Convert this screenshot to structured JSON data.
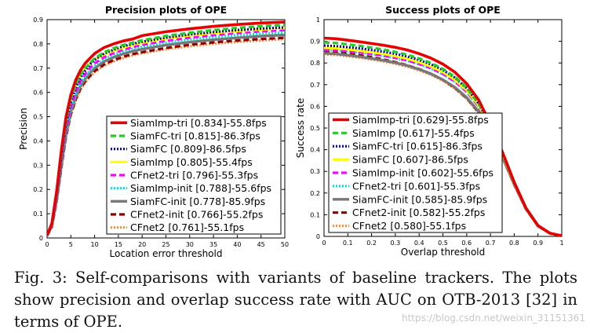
{
  "chart_data": [
    {
      "type": "line",
      "title": "Precision plots of OPE",
      "xlabel": "Location error threshold",
      "ylabel": "Precision",
      "xlim": [
        0,
        50
      ],
      "ylim": [
        0,
        0.9
      ],
      "xticks": [
        "0",
        "5",
        "10",
        "15",
        "20",
        "25",
        "30",
        "35",
        "40",
        "45",
        "50"
      ],
      "yticks": [
        "0",
        "0.1",
        "0.2",
        "0.3",
        "0.4",
        "0.5",
        "0.6",
        "0.7",
        "0.8",
        "0.9"
      ],
      "grid": false,
      "legend_position": "bottom-right",
      "x": [
        0,
        1,
        2,
        3,
        4,
        5,
        6,
        7,
        8,
        9,
        10,
        12,
        14,
        16,
        18,
        20,
        25,
        30,
        35,
        40,
        45,
        50
      ],
      "series": [
        {
          "name": "SiamImp-tri [0.834]-55.8fps",
          "color": "#e60000",
          "dash": "solid",
          "width": 3.6,
          "values": [
            0.01,
            0.06,
            0.19,
            0.36,
            0.5,
            0.59,
            0.65,
            0.69,
            0.72,
            0.74,
            0.76,
            0.785,
            0.8,
            0.812,
            0.82,
            0.834,
            0.85,
            0.862,
            0.872,
            0.88,
            0.886,
            0.89
          ]
        },
        {
          "name": "SiamFC-tri [0.815]-86.3fps",
          "color": "#22cc22",
          "dash": "7,4",
          "width": 3.2,
          "values": [
            0.01,
            0.055,
            0.18,
            0.34,
            0.48,
            0.57,
            0.63,
            0.67,
            0.7,
            0.72,
            0.74,
            0.765,
            0.782,
            0.795,
            0.805,
            0.815,
            0.833,
            0.846,
            0.857,
            0.866,
            0.873,
            0.878
          ]
        },
        {
          "name": "SiamFC [0.809]-86.5fps",
          "color": "#0000cc",
          "dash": "2,2",
          "width": 3.2,
          "values": [
            0.01,
            0.055,
            0.175,
            0.33,
            0.47,
            0.56,
            0.62,
            0.66,
            0.69,
            0.715,
            0.735,
            0.76,
            0.776,
            0.79,
            0.8,
            0.809,
            0.826,
            0.839,
            0.849,
            0.857,
            0.863,
            0.868
          ]
        },
        {
          "name": "SiamImp [0.805]-55.4fps",
          "color": "#ffff00",
          "dash": "solid",
          "width": 3.2,
          "values": [
            0.01,
            0.06,
            0.19,
            0.35,
            0.49,
            0.575,
            0.63,
            0.67,
            0.7,
            0.72,
            0.735,
            0.757,
            0.772,
            0.785,
            0.796,
            0.805,
            0.822,
            0.835,
            0.845,
            0.853,
            0.86,
            0.865
          ]
        },
        {
          "name": "CFnet2-tri [0.796]-55.3fps",
          "color": "#ff00ff",
          "dash": "7,4",
          "width": 3.2,
          "values": [
            0.01,
            0.05,
            0.165,
            0.32,
            0.45,
            0.54,
            0.6,
            0.645,
            0.675,
            0.7,
            0.72,
            0.745,
            0.762,
            0.776,
            0.787,
            0.796,
            0.813,
            0.826,
            0.836,
            0.845,
            0.852,
            0.857
          ]
        },
        {
          "name": "SiamImp-init [0.788]-55.6fps",
          "color": "#00e5e5",
          "dash": "2,2",
          "width": 3.2,
          "values": [
            0.01,
            0.05,
            0.16,
            0.31,
            0.44,
            0.53,
            0.59,
            0.635,
            0.665,
            0.69,
            0.71,
            0.737,
            0.755,
            0.769,
            0.78,
            0.788,
            0.805,
            0.818,
            0.828,
            0.836,
            0.842,
            0.847
          ]
        },
        {
          "name": "SiamFC-init [0.778]-85.9fps",
          "color": "#777777",
          "dash": "solid",
          "width": 3.4,
          "values": [
            0.01,
            0.05,
            0.155,
            0.3,
            0.43,
            0.52,
            0.58,
            0.625,
            0.655,
            0.68,
            0.7,
            0.727,
            0.745,
            0.759,
            0.77,
            0.778,
            0.795,
            0.807,
            0.817,
            0.825,
            0.832,
            0.837
          ]
        },
        {
          "name": "CFnet2-init [0.766]-55.2fps",
          "color": "#8b0000",
          "dash": "7,4",
          "width": 3.2,
          "values": [
            0.01,
            0.045,
            0.15,
            0.29,
            0.42,
            0.51,
            0.57,
            0.615,
            0.645,
            0.668,
            0.688,
            0.715,
            0.733,
            0.747,
            0.758,
            0.766,
            0.783,
            0.796,
            0.806,
            0.814,
            0.82,
            0.825
          ]
        },
        {
          "name": "CFnet2 [0.761]-55.1fps",
          "color": "#ff8c3c",
          "dash": "2,2",
          "width": 3.2,
          "values": [
            0.01,
            0.045,
            0.145,
            0.285,
            0.415,
            0.505,
            0.565,
            0.61,
            0.64,
            0.663,
            0.683,
            0.71,
            0.728,
            0.742,
            0.753,
            0.761,
            0.778,
            0.79,
            0.8,
            0.808,
            0.814,
            0.82
          ]
        }
      ]
    },
    {
      "type": "line",
      "title": "Success plots of OPE",
      "xlabel": "Overlap threshold",
      "ylabel": "Success rate",
      "xlim": [
        0,
        1
      ],
      "ylim": [
        0,
        1
      ],
      "xticks": [
        "0",
        "0.1",
        "0.2",
        "0.3",
        "0.4",
        "0.5",
        "0.6",
        "0.7",
        "0.8",
        "0.9",
        "1"
      ],
      "yticks": [
        "0",
        "0.1",
        "0.2",
        "0.3",
        "0.4",
        "0.5",
        "0.6",
        "0.7",
        "0.8",
        "0.9",
        "1"
      ],
      "grid": false,
      "legend_position": "bottom-left",
      "x": [
        0,
        0.05,
        0.1,
        0.15,
        0.2,
        0.25,
        0.3,
        0.35,
        0.4,
        0.45,
        0.5,
        0.55,
        0.6,
        0.65,
        0.7,
        0.75,
        0.8,
        0.85,
        0.9,
        0.95,
        1.0
      ],
      "series": [
        {
          "name": "SiamImp-tri [0.629]-55.8fps",
          "color": "#e60000",
          "dash": "solid",
          "width": 3.6,
          "values": [
            0.915,
            0.912,
            0.905,
            0.898,
            0.89,
            0.882,
            0.872,
            0.86,
            0.843,
            0.822,
            0.795,
            0.758,
            0.705,
            0.63,
            0.52,
            0.39,
            0.25,
            0.13,
            0.05,
            0.015,
            0.003
          ]
        },
        {
          "name": "SiamImp [0.617]-55.4fps",
          "color": "#22cc22",
          "dash": "7,4",
          "width": 3.2,
          "values": [
            0.895,
            0.892,
            0.886,
            0.879,
            0.871,
            0.862,
            0.851,
            0.838,
            0.821,
            0.8,
            0.773,
            0.737,
            0.687,
            0.615,
            0.51,
            0.385,
            0.248,
            0.13,
            0.05,
            0.015,
            0.003
          ]
        },
        {
          "name": "SiamFC-tri [0.615]-86.3fps",
          "color": "#0000cc",
          "dash": "2,2",
          "width": 3.2,
          "values": [
            0.88,
            0.878,
            0.873,
            0.867,
            0.86,
            0.852,
            0.842,
            0.83,
            0.814,
            0.794,
            0.768,
            0.733,
            0.684,
            0.613,
            0.51,
            0.385,
            0.248,
            0.13,
            0.05,
            0.015,
            0.003
          ]
        },
        {
          "name": "SiamFC [0.607]-86.5fps",
          "color": "#ffff00",
          "dash": "solid",
          "width": 3.2,
          "values": [
            0.87,
            0.868,
            0.863,
            0.857,
            0.85,
            0.842,
            0.832,
            0.82,
            0.804,
            0.784,
            0.758,
            0.723,
            0.675,
            0.605,
            0.505,
            0.382,
            0.246,
            0.129,
            0.05,
            0.015,
            0.003
          ]
        },
        {
          "name": "SiamImp-init [0.602]-55.6fps",
          "color": "#ff00ff",
          "dash": "7,4",
          "width": 3.2,
          "values": [
            0.862,
            0.86,
            0.855,
            0.849,
            0.842,
            0.834,
            0.824,
            0.812,
            0.796,
            0.776,
            0.75,
            0.715,
            0.668,
            0.6,
            0.5,
            0.38,
            0.245,
            0.128,
            0.05,
            0.015,
            0.003
          ]
        },
        {
          "name": "CFnet2-tri [0.601]-55.3fps",
          "color": "#00e5e5",
          "dash": "2,2",
          "width": 3.2,
          "values": [
            0.86,
            0.858,
            0.853,
            0.847,
            0.84,
            0.832,
            0.822,
            0.81,
            0.794,
            0.774,
            0.748,
            0.713,
            0.666,
            0.598,
            0.5,
            0.38,
            0.245,
            0.128,
            0.05,
            0.015,
            0.003
          ]
        },
        {
          "name": "SiamFC-init [0.585]-85.9fps",
          "color": "#777777",
          "dash": "solid",
          "width": 3.4,
          "values": [
            0.845,
            0.842,
            0.836,
            0.829,
            0.821,
            0.812,
            0.801,
            0.788,
            0.771,
            0.75,
            0.723,
            0.688,
            0.641,
            0.576,
            0.482,
            0.368,
            0.24,
            0.126,
            0.048,
            0.014,
            0.003
          ]
        },
        {
          "name": "CFnet2-init [0.582]-55.2fps",
          "color": "#8b0000",
          "dash": "7,4",
          "width": 3.2,
          "values": [
            0.855,
            0.851,
            0.844,
            0.836,
            0.827,
            0.816,
            0.804,
            0.79,
            0.772,
            0.75,
            0.722,
            0.686,
            0.638,
            0.572,
            0.48,
            0.366,
            0.238,
            0.125,
            0.048,
            0.014,
            0.003
          ]
        },
        {
          "name": "CFnet2 [0.580]-55.1fps",
          "color": "#ff8c3c",
          "dash": "2,2",
          "width": 3.2,
          "values": [
            0.84,
            0.837,
            0.831,
            0.824,
            0.816,
            0.807,
            0.796,
            0.783,
            0.766,
            0.745,
            0.718,
            0.682,
            0.635,
            0.57,
            0.478,
            0.365,
            0.237,
            0.125,
            0.048,
            0.014,
            0.003
          ]
        }
      ]
    }
  ],
  "caption": {
    "label": "Fig. 3:",
    "text": "Self-comparisons with variants of baseline trackers. The plots show precision and overlap success rate with AUC on OTB-2013 [32] in terms of OPE."
  },
  "watermark": "https://blog.csdn.net/weixin_31151361"
}
